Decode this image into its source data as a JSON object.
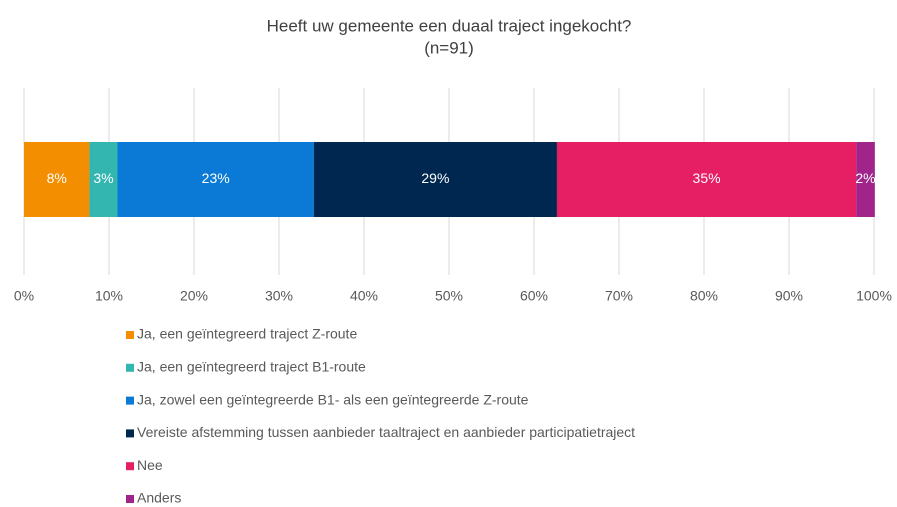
{
  "chart_data": {
    "type": "bar",
    "orientation": "horizontal",
    "stacked": true,
    "title": "Heeft uw gemeente een duaal traject ingekocht?",
    "subtitle": "(n=91)",
    "categories": [
      null
    ],
    "series": [
      {
        "name": "Ja, een geïntegreerd traject Z-route",
        "color": "#f28e00",
        "values": [
          7.7
        ],
        "value_labels": [
          "8%"
        ]
      },
      {
        "name": "Ja, een geïntegreerd traject B1-route",
        "color": "#33b5b0",
        "values": [
          3.3
        ],
        "value_labels": [
          "3%"
        ]
      },
      {
        "name": "Ja, zowel een geïntegreerde B1- als een geïntegreerde Z-route",
        "color": "#0a7ad6",
        "values": [
          23.1
        ],
        "value_labels": [
          "23%"
        ]
      },
      {
        "name": "Vereiste afstemming tussen aanbieder taaltraject en aanbieder participatietraject",
        "color": "#00274f",
        "values": [
          28.6
        ],
        "value_labels": [
          "29%"
        ]
      },
      {
        "name": "Nee",
        "color": "#e61e64",
        "values": [
          35.2
        ],
        "value_labels": [
          "35%"
        ]
      },
      {
        "name": "Anders",
        "color": "#a0248a",
        "values": [
          2.2
        ],
        "value_labels": [
          "2%"
        ]
      }
    ],
    "xlim": [
      0,
      100
    ],
    "xticks": [
      {
        "value": 0,
        "label": "0%"
      },
      {
        "value": 10,
        "label": "10%"
      },
      {
        "value": 20,
        "label": "20%"
      },
      {
        "value": 30,
        "label": "30%"
      },
      {
        "value": 40,
        "label": "40%"
      },
      {
        "value": 50,
        "label": "50%"
      },
      {
        "value": 60,
        "label": "60%"
      },
      {
        "value": 70,
        "label": "70%"
      },
      {
        "value": 80,
        "label": "80%"
      },
      {
        "value": 90,
        "label": "90%"
      },
      {
        "value": 100,
        "label": "100%"
      }
    ],
    "grid": true,
    "legend": "bottom"
  }
}
